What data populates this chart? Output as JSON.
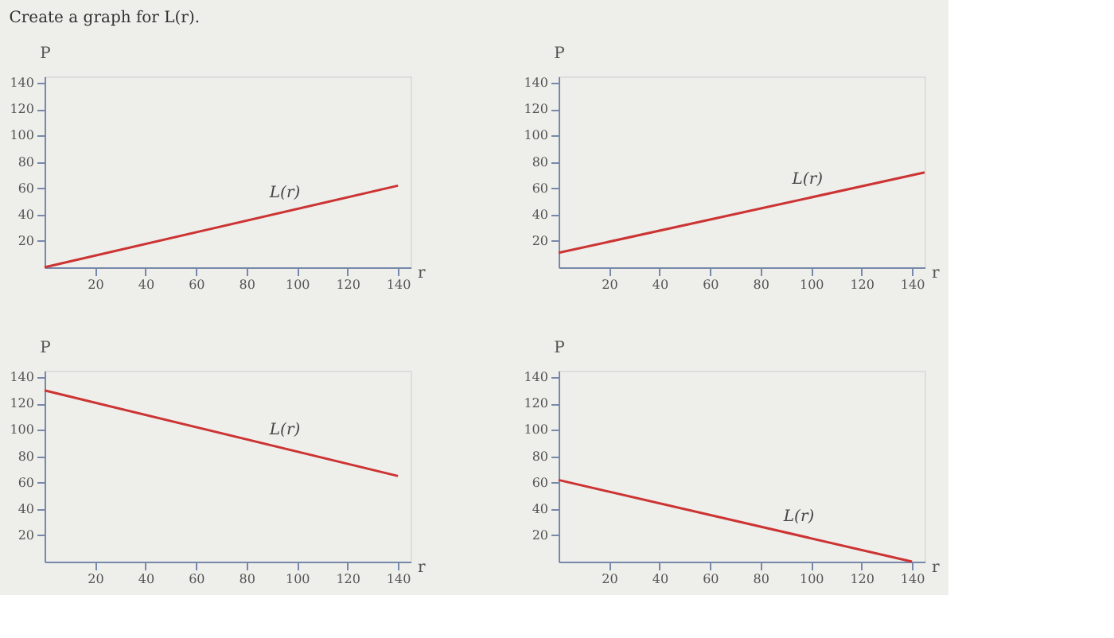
{
  "chart_data": [
    {
      "type": "line",
      "title": "Create a graph for L(r).",
      "xlabel": "r",
      "ylabel": "P",
      "x": [
        0,
        140
      ],
      "series": [
        {
          "name": "L(r)",
          "color": "#cc3333",
          "values": [
            0,
            62
          ]
        }
      ],
      "xlim": [
        0,
        145
      ],
      "ylim": [
        0,
        145
      ],
      "xticks": [
        20,
        40,
        60,
        80,
        100,
        120,
        140
      ],
      "yticks": [
        20,
        40,
        60,
        80,
        100,
        120,
        140
      ],
      "grid": false
    },
    {
      "type": "line",
      "xlabel": "r",
      "ylabel": "P",
      "x": [
        0,
        145
      ],
      "series": [
        {
          "name": "L(r)",
          "color": "#cc3333",
          "values": [
            11,
            72
          ]
        }
      ],
      "xlim": [
        0,
        145
      ],
      "ylim": [
        0,
        145
      ],
      "xticks": [
        20,
        40,
        60,
        80,
        100,
        120,
        140
      ],
      "yticks": [
        20,
        40,
        60,
        80,
        100,
        120,
        140
      ],
      "grid": false
    },
    {
      "type": "line",
      "xlabel": "r",
      "ylabel": "P",
      "x": [
        0,
        140
      ],
      "series": [
        {
          "name": "L(r)",
          "color": "#cc3333",
          "values": [
            130,
            65
          ]
        }
      ],
      "xlim": [
        0,
        145
      ],
      "ylim": [
        0,
        145
      ],
      "xticks": [
        20,
        40,
        60,
        80,
        100,
        120,
        140
      ],
      "yticks": [
        20,
        40,
        60,
        80,
        100,
        120,
        140
      ],
      "grid": false
    },
    {
      "type": "line",
      "xlabel": "r",
      "ylabel": "P",
      "x": [
        0,
        140
      ],
      "series": [
        {
          "name": "L(r)",
          "color": "#cc3333",
          "values": [
            62,
            0
          ]
        }
      ],
      "xlim": [
        0,
        145
      ],
      "ylim": [
        0,
        145
      ],
      "xticks": [
        20,
        40,
        60,
        80,
        100,
        120,
        140
      ],
      "yticks": [
        20,
        40,
        60,
        80,
        100,
        120,
        140
      ],
      "grid": false
    }
  ]
}
